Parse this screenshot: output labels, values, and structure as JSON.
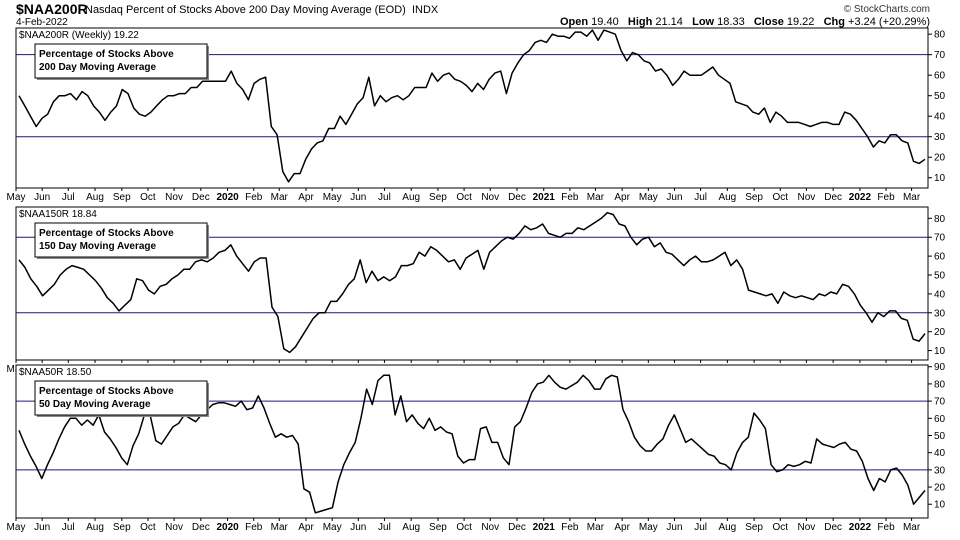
{
  "header": {
    "symbol": "$NAA200R",
    "name": "Nasdaq Percent of Stocks Above 200 Day Moving Average (EOD)",
    "exchange": "INDX",
    "date": "4-Feb-2022",
    "open_label": "Open",
    "open": "19.40",
    "high_label": "High",
    "high": "21.14",
    "low_label": "Low",
    "low": "18.33",
    "close_label": "Close",
    "close": "19.22",
    "chg_label": "Chg",
    "chg": "+3.24 (+20.29%)",
    "credit": "© StockCharts.com"
  },
  "x_axis_labels": [
    {
      "text": "May",
      "idx": 0
    },
    {
      "text": "Jun",
      "idx": 4.3
    },
    {
      "text": "Jul",
      "idx": 8.6
    },
    {
      "text": "Aug",
      "idx": 13
    },
    {
      "text": "Sep",
      "idx": 17.4
    },
    {
      "text": "Oct",
      "idx": 21.7
    },
    {
      "text": "Nov",
      "idx": 26
    },
    {
      "text": "Dec",
      "idx": 30.4
    },
    {
      "text": "2020",
      "idx": 34.8,
      "bold": true
    },
    {
      "text": "Feb",
      "idx": 39.1
    },
    {
      "text": "Mar",
      "idx": 43.3
    },
    {
      "text": "Apr",
      "idx": 47.7
    },
    {
      "text": "May",
      "idx": 52
    },
    {
      "text": "Jun",
      "idx": 56.3
    },
    {
      "text": "Jul",
      "idx": 60.6
    },
    {
      "text": "Aug",
      "idx": 65
    },
    {
      "text": "Sep",
      "idx": 69.4
    },
    {
      "text": "Oct",
      "idx": 73.7
    },
    {
      "text": "Nov",
      "idx": 78
    },
    {
      "text": "Dec",
      "idx": 82.4
    },
    {
      "text": "2021",
      "idx": 86.8,
      "bold": true
    },
    {
      "text": "Feb",
      "idx": 91.1
    },
    {
      "text": "Mar",
      "idx": 95.3
    },
    {
      "text": "Apr",
      "idx": 99.7
    },
    {
      "text": "May",
      "idx": 104
    },
    {
      "text": "Jun",
      "idx": 108.3
    },
    {
      "text": "Jul",
      "idx": 112.6
    },
    {
      "text": "Aug",
      "idx": 117
    },
    {
      "text": "Sep",
      "idx": 121.4
    },
    {
      "text": "Oct",
      "idx": 125.7
    },
    {
      "text": "Nov",
      "idx": 130
    },
    {
      "text": "Dec",
      "idx": 134.4
    },
    {
      "text": "2022",
      "idx": 138.8,
      "bold": true
    },
    {
      "text": "Feb",
      "idx": 143.1
    },
    {
      "text": "Mar",
      "idx": 147.3
    }
  ],
  "chart_data": [
    {
      "type": "line",
      "panel_label": "$NAA200R (Weekly) 19.22",
      "title": "Percentage of Stocks Above\n200 Day Moving Average",
      "ylim": [
        5,
        83
      ],
      "yticks": [
        10,
        20,
        30,
        40,
        50,
        60,
        70,
        80
      ],
      "hlines": [
        70,
        30
      ],
      "values": [
        50,
        45,
        40,
        35,
        39,
        41,
        47,
        50,
        50,
        51,
        48,
        52,
        50,
        45,
        42,
        38,
        42,
        45,
        53,
        51,
        44,
        41,
        40,
        42,
        45,
        48,
        50,
        50,
        51,
        51,
        54,
        54,
        57,
        57,
        57,
        57,
        57,
        62,
        56,
        53,
        48,
        56,
        58,
        59,
        35,
        31,
        13,
        8,
        12,
        12,
        19,
        24,
        27,
        28,
        34,
        34,
        40,
        36,
        41,
        46,
        49,
        59,
        45,
        50,
        47,
        49,
        50,
        48,
        50,
        54,
        54,
        54,
        61,
        57,
        60,
        61,
        58,
        57,
        55,
        52,
        56,
        53,
        58,
        61,
        62,
        51,
        61,
        66,
        70,
        72,
        76,
        77,
        76,
        80,
        79,
        79,
        78,
        81,
        81,
        79,
        82,
        77,
        82,
        81,
        80,
        72,
        67,
        71,
        70,
        67,
        66,
        62,
        63,
        60,
        55,
        58,
        62,
        60,
        60,
        60,
        62,
        64,
        60,
        58,
        56,
        47,
        46,
        45,
        42,
        41,
        44,
        37,
        42,
        40,
        37,
        37,
        37,
        36,
        35,
        36,
        37,
        37,
        36,
        36,
        42,
        41,
        38,
        34,
        30,
        25,
        28,
        27,
        31,
        31,
        28,
        27,
        18,
        17,
        19
      ]
    },
    {
      "type": "line",
      "panel_label": "$NAA150R 18.84",
      "title": "Percentage of Stocks Above\n150 Day Moving Average",
      "ylim": [
        5,
        86
      ],
      "yticks": [
        10,
        20,
        30,
        40,
        50,
        60,
        70,
        80
      ],
      "hlines": [
        70,
        30
      ],
      "values": [
        58,
        54,
        48,
        44,
        39,
        42,
        45,
        50,
        53,
        55,
        54,
        53,
        50,
        47,
        43,
        38,
        35,
        31,
        34,
        37,
        48,
        47,
        42,
        40,
        44,
        45,
        48,
        50,
        53,
        53,
        57,
        58,
        57,
        59,
        62,
        63,
        66,
        60,
        56,
        52,
        57,
        59,
        59,
        33,
        28,
        11,
        9,
        12,
        17,
        22,
        27,
        30,
        30,
        36,
        36,
        40,
        45,
        48,
        58,
        46,
        52,
        47,
        49,
        47,
        49,
        55,
        55,
        56,
        62,
        60,
        65,
        63,
        60,
        57,
        58,
        53,
        59,
        61,
        63,
        53,
        62,
        65,
        68,
        70,
        69,
        72,
        76,
        74,
        75,
        77,
        72,
        71,
        70,
        72,
        72,
        75,
        74,
        76,
        78,
        80,
        83,
        82,
        77,
        76,
        70,
        66,
        69,
        70,
        65,
        67,
        62,
        61,
        58,
        55,
        58,
        60,
        57,
        57,
        58,
        60,
        62,
        55,
        58,
        53,
        42,
        41,
        40,
        39,
        40,
        35,
        41,
        39,
        38,
        39,
        38,
        37,
        40,
        39,
        41,
        40,
        45,
        44,
        40,
        34,
        30,
        25,
        30,
        28,
        31,
        31,
        27,
        26,
        16,
        15,
        19
      ]
    },
    {
      "type": "line",
      "panel_label": "$NAA50R 18.50",
      "title": "Percentage of Stocks Above\n50 Day Moving Average",
      "ylim": [
        2,
        91
      ],
      "yticks": [
        10,
        20,
        30,
        40,
        50,
        60,
        70,
        80,
        90
      ],
      "hlines": [
        70,
        30
      ],
      "values": [
        53,
        45,
        38,
        32,
        25,
        33,
        40,
        48,
        55,
        60,
        60,
        56,
        59,
        56,
        62,
        52,
        48,
        43,
        37,
        33,
        44,
        51,
        62,
        62,
        47,
        45,
        50,
        55,
        57,
        62,
        60,
        58,
        62,
        65,
        68,
        69,
        69,
        68,
        67,
        70,
        65,
        66,
        73,
        66,
        57,
        49,
        51,
        49,
        50,
        45,
        19,
        17,
        5,
        6,
        7,
        8,
        23,
        33,
        40,
        46,
        60,
        77,
        68,
        82,
        85,
        85,
        62,
        73,
        58,
        62,
        57,
        54,
        60,
        53,
        55,
        52,
        51,
        38,
        34,
        36,
        36,
        54,
        55,
        46,
        46,
        37,
        33,
        55,
        58,
        66,
        75,
        80,
        81,
        85,
        81,
        78,
        77,
        79,
        81,
        85,
        82,
        77,
        77,
        83,
        85,
        84,
        65,
        58,
        49,
        44,
        41,
        41,
        45,
        48,
        56,
        62,
        54,
        46,
        48,
        45,
        42,
        39,
        38,
        34,
        33,
        30,
        40,
        46,
        49,
        63,
        59,
        54,
        33,
        29,
        30,
        33,
        32,
        33,
        35,
        34,
        48,
        45,
        44,
        43,
        45,
        46,
        42,
        41,
        35,
        25,
        18,
        25,
        23,
        30,
        31,
        27,
        21,
        10,
        14,
        18
      ]
    }
  ]
}
